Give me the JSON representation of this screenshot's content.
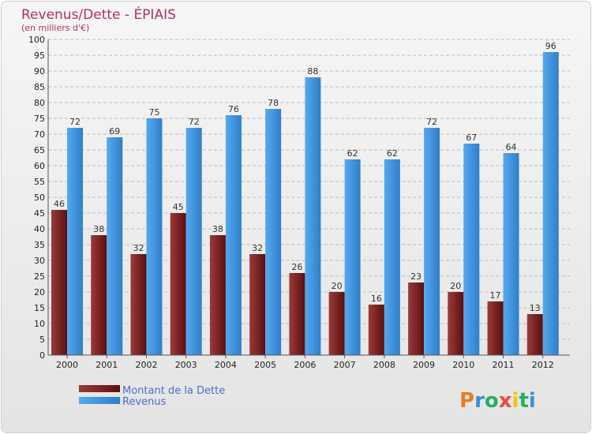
{
  "chart_data": {
    "type": "bar",
    "title": "Revenus/Dette - ÉPIAIS",
    "subtitle": "(en milliers d'€)",
    "categories": [
      "2000",
      "2001",
      "2002",
      "2003",
      "2004",
      "2005",
      "2006",
      "2007",
      "2008",
      "2009",
      "2010",
      "2011",
      "2012"
    ],
    "series": [
      {
        "name": "Montant de la Dette",
        "color": "#7a1a1a",
        "values": [
          46,
          38,
          32,
          45,
          38,
          32,
          26,
          20,
          16,
          23,
          20,
          17,
          13
        ]
      },
      {
        "name": "Revenus",
        "color": "#3a8fd8",
        "values": [
          72,
          69,
          75,
          72,
          76,
          78,
          88,
          62,
          62,
          72,
          67,
          64,
          96
        ]
      }
    ],
    "ylim": [
      0,
      100
    ],
    "ytick_step": 5,
    "grid": true,
    "legend_position": "bottom-left"
  },
  "logo": {
    "letters": [
      "P",
      "r",
      "o",
      "x",
      "i",
      "t",
      "i"
    ],
    "colors": [
      "#e67e22",
      "#3a8fd8",
      "#27ae60",
      "#e74c3c",
      "#f1c40f",
      "#27ae60",
      "#3a8fd8"
    ]
  }
}
